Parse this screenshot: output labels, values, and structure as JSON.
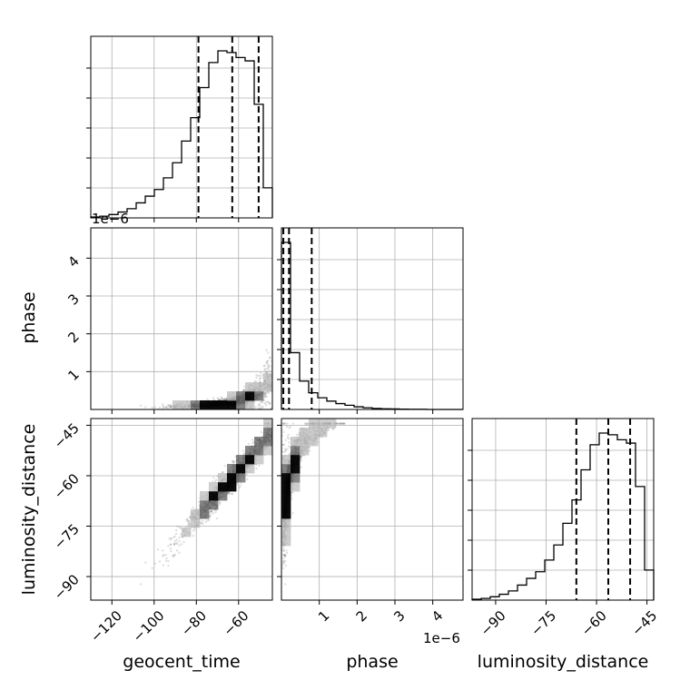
{
  "chart_data": {
    "type": "corner",
    "params": [
      "geocent_time",
      "phase",
      "luminosity_distance"
    ],
    "axis_labels": {
      "geocent_time": "geocent_time",
      "phase": "phase",
      "luminosity_distance": "luminosity_distance"
    },
    "ranges": {
      "geocent_time": [
        -130,
        -44
      ],
      "phase": [
        0.0,
        4.8
      ],
      "luminosity_distance": [
        -97,
        -43
      ]
    },
    "ticks": {
      "geocent_time": [
        -120,
        -100,
        -80,
        -60
      ],
      "phase": [
        1,
        2,
        3,
        4
      ],
      "luminosity_distance": [
        -90,
        -75,
        -60,
        -45
      ]
    },
    "tick_labels": {
      "geocent_time": [
        "−120",
        "−100",
        "−80",
        "−60"
      ],
      "phase": [
        "1",
        "2",
        "3",
        "4"
      ],
      "luminosity_distance": [
        "−90",
        "−75",
        "−60",
        "−45"
      ]
    },
    "offset_text": {
      "geocent_time_hist": "1e−6",
      "phase_x": "1e−6"
    },
    "histograms": {
      "geocent_time": {
        "edges": [
          -130,
          -125.7,
          -121.4,
          -117.1,
          -112.8,
          -108.5,
          -104.2,
          -99.9,
          -95.6,
          -91.3,
          -87,
          -82.7,
          -78.4,
          -74.1,
          -69.8,
          -65.5,
          -61.2,
          -56.9,
          -52.6,
          -48.3,
          -44
        ],
        "counts": [
          0.005,
          0.01,
          0.02,
          0.035,
          0.055,
          0.09,
          0.13,
          0.17,
          0.24,
          0.33,
          0.46,
          0.6,
          0.78,
          0.93,
          1.0,
          0.99,
          0.96,
          0.94,
          0.68,
          0.18
        ],
        "quantiles": [
          -79,
          -63,
          -50.5
        ]
      },
      "phase": {
        "edges": [
          0,
          0.24,
          0.48,
          0.72,
          0.96,
          1.2,
          1.44,
          1.68,
          1.92,
          2.16,
          2.4,
          2.64,
          2.88,
          3.12,
          3.36,
          3.6,
          3.84,
          4.08,
          4.32,
          4.56,
          4.8
        ],
        "counts": [
          1.0,
          0.34,
          0.17,
          0.1,
          0.07,
          0.05,
          0.035,
          0.025,
          0.016,
          0.01,
          0.006,
          0.004,
          0.003,
          0.002,
          0.001,
          0.001,
          0.0,
          0.0,
          0.0,
          0.0
        ],
        "quantiles": [
          0.05,
          0.2,
          0.8
        ]
      },
      "luminosity_distance": {
        "edges": [
          -97,
          -94.3,
          -91.6,
          -88.9,
          -86.2,
          -83.5,
          -80.8,
          -78.1,
          -75.4,
          -72.7,
          -70,
          -67.3,
          -64.6,
          -61.9,
          -59.2,
          -56.5,
          -53.8,
          -51.1,
          -48.4,
          -45.7,
          -43
        ],
        "counts": [
          0.005,
          0.01,
          0.02,
          0.035,
          0.055,
          0.09,
          0.13,
          0.17,
          0.24,
          0.33,
          0.46,
          0.6,
          0.78,
          0.93,
          1.0,
          0.99,
          0.96,
          0.94,
          0.68,
          0.18
        ],
        "quantiles": [
          -66,
          -56.5,
          -50
        ]
      }
    },
    "grid": true,
    "point_color": "#555555",
    "line_color": "#000000"
  }
}
